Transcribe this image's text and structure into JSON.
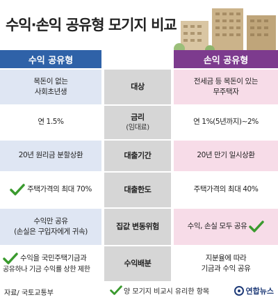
{
  "title": "수익·손익 공유형 모기지 비교",
  "headers": {
    "left": "수익 공유형",
    "right": "손익 공유형"
  },
  "rows": [
    {
      "left": [
        "목돈이 없는",
        "사회초년생"
      ],
      "label": [
        "대상"
      ],
      "right": [
        "전세금 등 목돈이 있는",
        "무주택자"
      ]
    },
    {
      "left": [
        "연 1.5%"
      ],
      "label": [
        "금리",
        "(임대료)"
      ],
      "right": [
        "연 1%(5년까지)∼2%"
      ]
    },
    {
      "left": [
        "20년 원리금 분할상환"
      ],
      "label": [
        "대출기간"
      ],
      "right": [
        "20년 만기 일시상환"
      ]
    },
    {
      "left": [
        "주택가격의 최대 70%"
      ],
      "label": [
        "대출한도"
      ],
      "right": [
        "주택가격의 최대 40%"
      ]
    },
    {
      "left": [
        "수익만 공유",
        "(손실은 구입자에게 귀속)"
      ],
      "label": [
        "집값 변동위험"
      ],
      "right": [
        "수익, 손실 모두 공유"
      ]
    },
    {
      "left": [
        "수익을 국민주택기금과",
        "공유하나 기금 수익률 상한 제한"
      ],
      "label": [
        "수익배분"
      ],
      "right": [
        "지분율에 따라",
        "기금과 수익 공유"
      ]
    }
  ],
  "footer": {
    "source": "자료/ 국토교통부",
    "legend": "양 모기지 비교시 유리한 항목",
    "brand": "연합뉴스"
  },
  "colors": {
    "left_header": "#2f62a8",
    "right_header": "#7d3b8e",
    "check": "#3a9a2e"
  }
}
